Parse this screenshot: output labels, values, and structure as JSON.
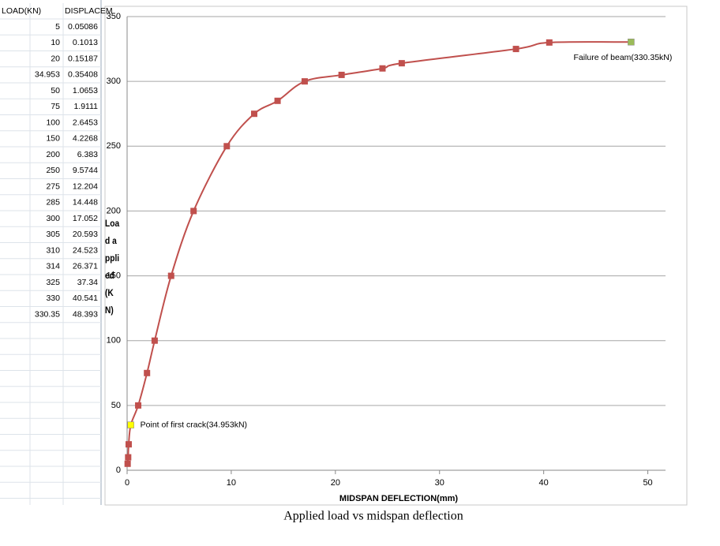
{
  "table": {
    "columns": [
      "LOAD(KN)",
      "DISPLACEM"
    ]
  },
  "chart_data": {
    "type": "line",
    "caption": "Applied load vs midspan deflection",
    "xlabel": "MIDSPAN DEFLECTION(mm)",
    "ylabel": "Load applied(KN)",
    "x": [
      0.05086,
      0.1013,
      0.15187,
      0.35408,
      1.0653,
      1.9111,
      2.6453,
      4.2268,
      6.383,
      9.5744,
      12.204,
      14.448,
      17.052,
      20.593,
      24.523,
      26.371,
      37.34,
      40.541,
      48.393
    ],
    "series": [
      {
        "color": "#c0504d",
        "values": [
          5,
          10,
          20,
          34.953,
          50,
          75,
          100,
          150,
          200,
          250,
          275,
          285,
          300,
          305,
          310,
          314,
          325,
          330,
          330.35
        ]
      }
    ],
    "annotations": [
      {
        "text": "Point of first crack(34.953kN)",
        "x": 0.35408,
        "y": 34.953,
        "color": "#ffff00",
        "position": "right"
      },
      {
        "text": "Failure of beam(330.35kN)",
        "x": 48.393,
        "y": 330.35,
        "color": "#9bbb59",
        "position": "below"
      }
    ],
    "xlim": [
      0,
      51.7
    ],
    "ylim": [
      0,
      350
    ],
    "xticks": [
      0,
      10,
      20,
      30,
      40,
      50
    ],
    "yticks": [
      0,
      50,
      100,
      150,
      200,
      250,
      300,
      350
    ],
    "grid": true
  }
}
